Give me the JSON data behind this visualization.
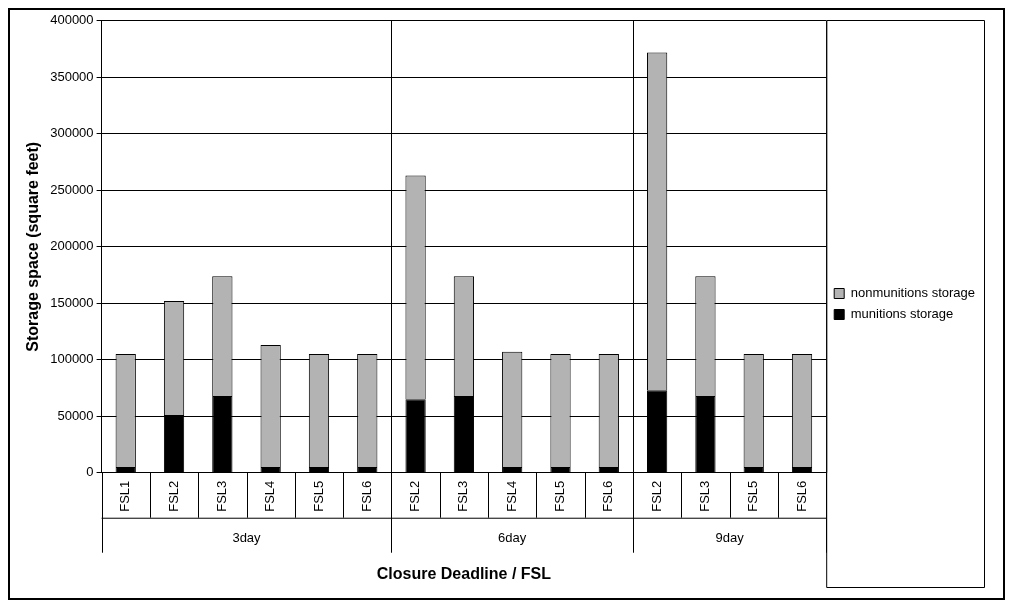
{
  "chart_data": {
    "type": "bar",
    "xlabel": "Closure Deadline / FSL",
    "ylabel": "Storage space (square feet)",
    "categories": [
      "FSL1",
      "FSL2",
      "FSL3",
      "FSL4",
      "FSL5",
      "FSL6",
      "FSL2",
      "FSL3",
      "FSL4",
      "FSL5",
      "FSL6",
      "FSL2",
      "FSL3",
      "FSL5",
      "FSL6"
    ],
    "annotations": [
      "3day",
      "6day",
      "9day"
    ],
    "stacked": true,
    "series": [
      {
        "name": "munitions storage",
        "color": "#000000",
        "values": [
          5000,
          51000,
          68000,
          5000,
          5000,
          5000,
          65000,
          68000,
          5000,
          5000,
          5000,
          73000,
          68000,
          5000,
          5000
        ]
      },
      {
        "name": "nonmunitions storage",
        "color": "#b3b3b3",
        "values": [
          100000,
          101000,
          106000,
          108000,
          100000,
          100000,
          198000,
          106000,
          102000,
          100000,
          100000,
          299000,
          106000,
          100000,
          100000
        ]
      }
    ],
    "ylim": [
      0,
      400000
    ],
    "yticks": [
      0,
      50000,
      100000,
      150000,
      200000,
      250000,
      300000,
      350000,
      400000
    ],
    "grid": "y",
    "legend": "right"
  }
}
